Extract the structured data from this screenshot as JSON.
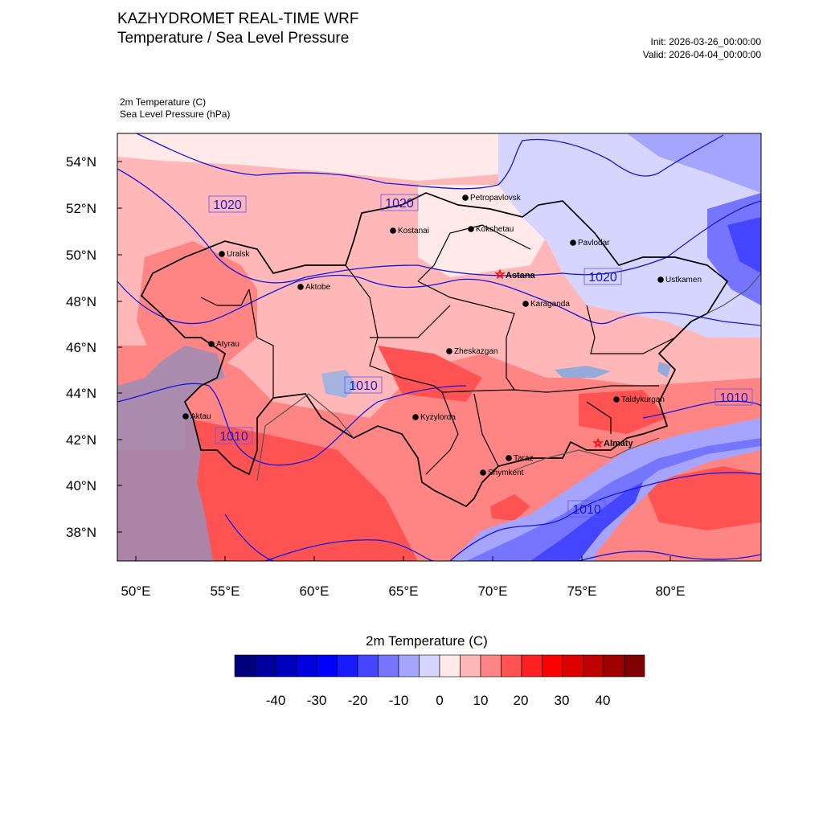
{
  "header": {
    "title_line1": "KAZHYDROMET REAL-TIME WRF",
    "title_line2": "Temperature / Sea Level Pressure",
    "init": "Init: 2026-03-26_00:00:00",
    "valid": "Valid: 2026-04-04_00:00:00"
  },
  "fields": {
    "var1": "2m Temperature   (C)",
    "var2": "Sea Level Pressure   (hPa)"
  },
  "axes": {
    "lat_labels": [
      "54°N",
      "52°N",
      "50°N",
      "48°N",
      "46°N",
      "44°N",
      "42°N",
      "40°N",
      "38°N"
    ],
    "lon_labels": [
      "50°E",
      "55°E",
      "60°E",
      "65°E",
      "70°E",
      "75°E",
      "80°E"
    ]
  },
  "isobar_labels": [
    {
      "text": "1020",
      "id": "isobar-label-1020-west"
    },
    {
      "text": "1020",
      "id": "isobar-label-1020-north"
    },
    {
      "text": "1020",
      "id": "isobar-label-1020-east"
    },
    {
      "text": "1010",
      "id": "isobar-label-1010-center"
    },
    {
      "text": "1010",
      "id": "isobar-label-1010-southwest"
    },
    {
      "text": "1010",
      "id": "isobar-label-1010-east"
    },
    {
      "text": "1010",
      "id": "isobar-label-1010-south"
    }
  ],
  "cities": [
    {
      "name": "Petropavlovsk",
      "capital": false
    },
    {
      "name": "Kostanai",
      "capital": false
    },
    {
      "name": "Kokshetau",
      "capital": false
    },
    {
      "name": "Pavlodar",
      "capital": false
    },
    {
      "name": "Uralsk",
      "capital": false
    },
    {
      "name": "Astana",
      "capital": true
    },
    {
      "name": "Ustkamen",
      "capital": false
    },
    {
      "name": "Aktobe",
      "capital": false
    },
    {
      "name": "Karaganda",
      "capital": false
    },
    {
      "name": "Atyrau",
      "capital": false
    },
    {
      "name": "Zheskazgan",
      "capital": false
    },
    {
      "name": "Taldykurgan",
      "capital": false
    },
    {
      "name": "Aktau",
      "capital": false
    },
    {
      "name": "Kyzylorda",
      "capital": false
    },
    {
      "name": "Almaty",
      "capital": true
    },
    {
      "name": "Taraz",
      "capital": false
    },
    {
      "name": "Shymkent",
      "capital": false
    }
  ],
  "colorbar": {
    "title": "2m Temperature  (C)",
    "tick_labels": [
      "-40",
      "-30",
      "-20",
      "-10",
      "0",
      "10",
      "20",
      "30",
      "40"
    ],
    "colors": [
      "#00007f",
      "#00009f",
      "#0000bf",
      "#0000df",
      "#0000ff",
      "#1a1aff",
      "#4545ff",
      "#7575ff",
      "#a5a5ff",
      "#d5d5ff",
      "#ffe9e9",
      "#ffb7b7",
      "#ff8585",
      "#ff5353",
      "#ff2121",
      "#ff0000",
      "#df0000",
      "#bf0000",
      "#9f0000",
      "#7f0000"
    ]
  },
  "colors": {
    "isobar": "#1515e0",
    "boundary": "#000000",
    "capital_marker": "#ff0000"
  }
}
